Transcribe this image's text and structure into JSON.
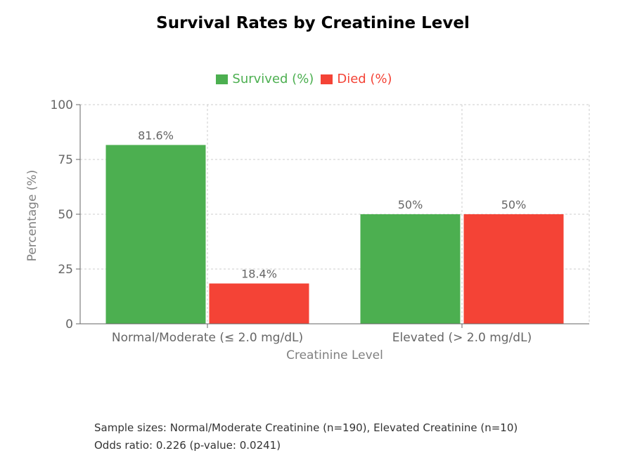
{
  "chart_data": {
    "type": "bar",
    "title": "Survival Rates by Creatinine Level",
    "xlabel": "Creatinine Level",
    "ylabel": "Percentage (%)",
    "ylim": [
      0,
      100
    ],
    "yticks": [
      0,
      25,
      50,
      75,
      100
    ],
    "categories": [
      "Normal/Moderate (≤ 2.0 mg/dL)",
      "Elevated (> 2.0 mg/dL)"
    ],
    "series": [
      {
        "name": "Survived (%)",
        "color": "#4caf50",
        "values": [
          81.6,
          50
        ],
        "labels": [
          "81.6%",
          "50%"
        ]
      },
      {
        "name": "Died (%)",
        "color": "#f44336",
        "values": [
          18.4,
          50
        ],
        "labels": [
          "18.4%",
          "50%"
        ]
      }
    ],
    "legend_position": "top-center",
    "grid": true
  },
  "notes": {
    "line1": "Sample sizes: Normal/Moderate Creatinine (n=190), Elevated Creatinine (n=10)",
    "line2": "Odds ratio: 0.226 (p-value: 0.0241)"
  }
}
